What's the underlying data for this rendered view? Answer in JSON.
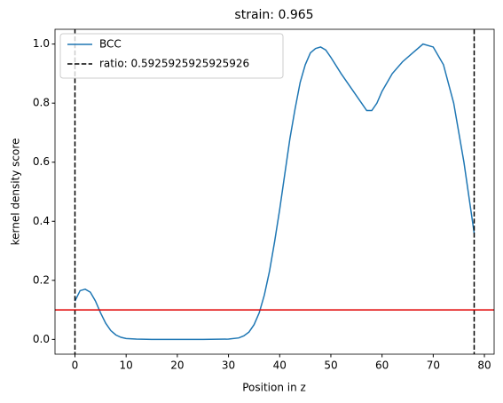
{
  "chart_data": {
    "type": "line",
    "title": "strain: 0.965",
    "xlabel": "Position in z",
    "ylabel": "kernel density score",
    "x": [
      0,
      1,
      2,
      3,
      4,
      5,
      6,
      7,
      8,
      9,
      10,
      12,
      15,
      20,
      25,
      30,
      32,
      33,
      34,
      35,
      36,
      37,
      38,
      39,
      40,
      41,
      42,
      43,
      44,
      45,
      46,
      47,
      48,
      49,
      50,
      52,
      54,
      56,
      57,
      58,
      59,
      60,
      62,
      64,
      66,
      68,
      70,
      72,
      74,
      76,
      78
    ],
    "series": [
      {
        "name": "BCC",
        "color": "#1f77b4",
        "values": [
          0.13,
          0.165,
          0.17,
          0.16,
          0.13,
          0.09,
          0.055,
          0.03,
          0.015,
          0.007,
          0.003,
          0.001,
          0,
          0,
          0,
          0.001,
          0.005,
          0.012,
          0.025,
          0.05,
          0.09,
          0.15,
          0.23,
          0.33,
          0.44,
          0.56,
          0.68,
          0.78,
          0.87,
          0.93,
          0.97,
          0.985,
          0.99,
          0.98,
          0.955,
          0.9,
          0.85,
          0.8,
          0.775,
          0.775,
          0.8,
          0.84,
          0.9,
          0.94,
          0.97,
          1.0,
          0.99,
          0.93,
          0.8,
          0.6,
          0.36
        ]
      }
    ],
    "vlines": {
      "name": "ratio: 0.5925925925925926",
      "color": "#000000",
      "values": [
        0,
        78
      ]
    },
    "hline": {
      "value": 0.1,
      "color": "#e00000"
    },
    "xlim": [
      -3.9,
      81.9
    ],
    "ylim": [
      -0.05,
      1.05
    ],
    "xticks": [
      0,
      10,
      20,
      30,
      40,
      50,
      60,
      70,
      80
    ],
    "yticks": [
      {
        "value": 0,
        "label": "0.0"
      },
      0.2,
      0.4,
      0.6,
      0.8,
      {
        "value": 1,
        "label": "1.0"
      }
    ],
    "legend": "upper left"
  }
}
